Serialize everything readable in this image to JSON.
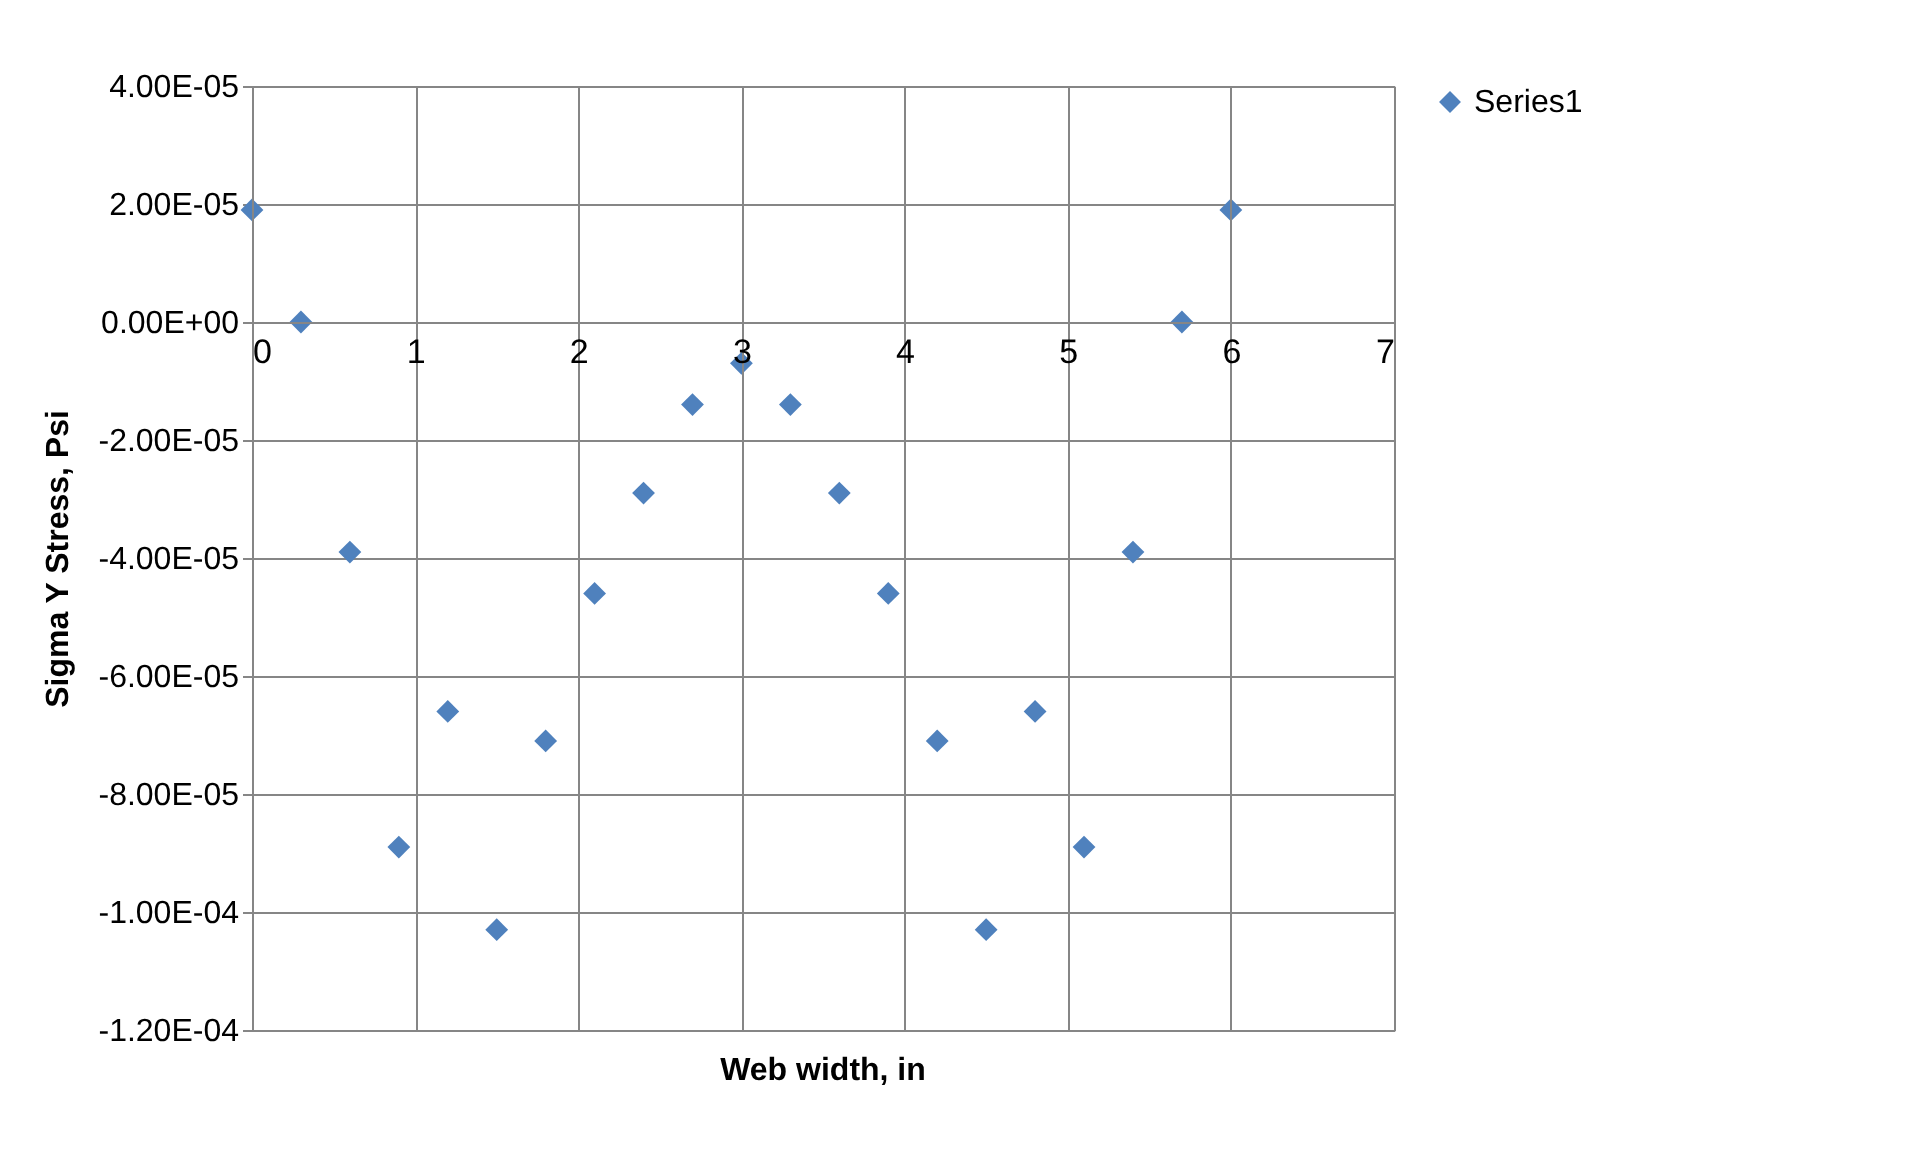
{
  "chart_data": {
    "type": "scatter",
    "xlabel": "Web width, in",
    "ylabel": "Sigma Y Stress, Psi",
    "x": [
      0,
      0.3,
      0.6,
      0.9,
      1.2,
      1.5,
      1.8,
      2.1,
      2.4,
      2.7,
      3.0,
      3.3,
      3.6,
      3.9,
      4.2,
      4.5,
      4.8,
      5.1,
      5.4,
      5.7,
      6.0
    ],
    "series": [
      {
        "name": "Series1",
        "color": "#4f81bd",
        "values": [
          1.9e-05,
          0,
          -3.9e-05,
          -8.9e-05,
          -6.6e-05,
          -0.000103,
          -7.1e-05,
          -4.6e-05,
          -2.9e-05,
          -1.4e-05,
          -7e-06,
          -1.4e-05,
          -2.9e-05,
          -4.6e-05,
          -7.1e-05,
          -0.000103,
          -6.6e-05,
          -8.9e-05,
          -3.9e-05,
          0,
          1.9e-05
        ]
      }
    ],
    "xlim": [
      0,
      7
    ],
    "xticks": [
      0,
      1,
      2,
      3,
      4,
      5,
      6,
      7
    ],
    "ylim": [
      -0.00012,
      4e-05
    ],
    "yticks": [
      {
        "value": -0.00012,
        "label": "-1.20E-04"
      },
      {
        "value": -0.0001,
        "label": "-1.00E-04"
      },
      {
        "value": -8e-05,
        "label": "-8.00E-05"
      },
      {
        "value": -6e-05,
        "label": "-6.00E-05"
      },
      {
        "value": -4e-05,
        "label": "-4.00E-05"
      },
      {
        "value": -2e-05,
        "label": "-2.00E-05"
      },
      {
        "value": 0,
        "label": "0.00E+00"
      },
      {
        "value": 2e-05,
        "label": "2.00E-05"
      },
      {
        "value": 4e-05,
        "label": "4.00E-05"
      }
    ],
    "grid": true,
    "legend": "right",
    "marker": "diamond"
  }
}
